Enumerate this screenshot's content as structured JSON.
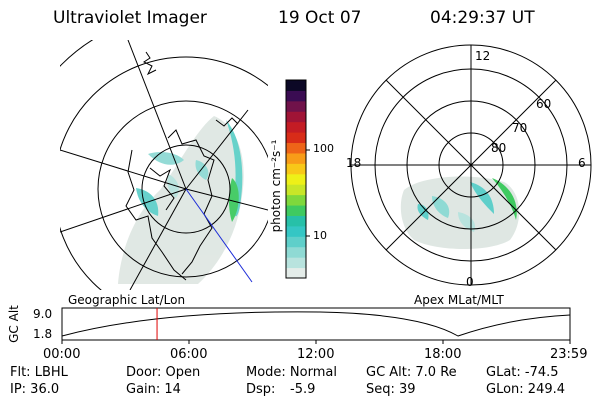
{
  "header": {
    "instrument": "Ultraviolet Imager",
    "date": "19 Oct 07",
    "time": "04:29:37 UT"
  },
  "left_panel": {
    "title": "Geographic Lat/Lon"
  },
  "right_panel": {
    "title": "Apex MLat/MLT",
    "mlt_labels": [
      "12",
      "18",
      "6",
      "0"
    ],
    "lat_labels": [
      "60",
      "70",
      "80"
    ]
  },
  "colorbar": {
    "unit_label": "photon cm⁻²s⁻¹",
    "ticks": [
      "100",
      "10"
    ],
    "colors": [
      "#e4ece9",
      "#b8e3de",
      "#8fdad4",
      "#5fcfca",
      "#35c6c4",
      "#27c0a8",
      "#3fca60",
      "#7fd83c",
      "#c8e628",
      "#eef018",
      "#f8c818",
      "#f89c18",
      "#ee6418",
      "#d82c18",
      "#c41c24",
      "#a01436",
      "#70124a",
      "#3a0c52",
      "#0c0826"
    ]
  },
  "altitude_plot": {
    "ylabel": "GC Alt",
    "y_ticks": [
      "9.0",
      "1.8"
    ],
    "x_ticks": [
      "00:00",
      "06:00",
      "12:00",
      "18:00",
      "23:59"
    ],
    "current_time_hours": 4.49
  },
  "info": {
    "row1": {
      "flt": "Flt: LBHL",
      "door": "Door: Open",
      "mode": "Mode: Normal",
      "gc_alt": "GC Alt: 7.0 Re",
      "glat": "GLat: -74.5"
    },
    "row2": {
      "ip": "IP: 36.0",
      "gain": "Gain: 14",
      "dsp_label": "Dsp:",
      "dsp_value": "-5.9",
      "seq": "Seq: 39",
      "glon": "GLon: 249.4"
    }
  }
}
